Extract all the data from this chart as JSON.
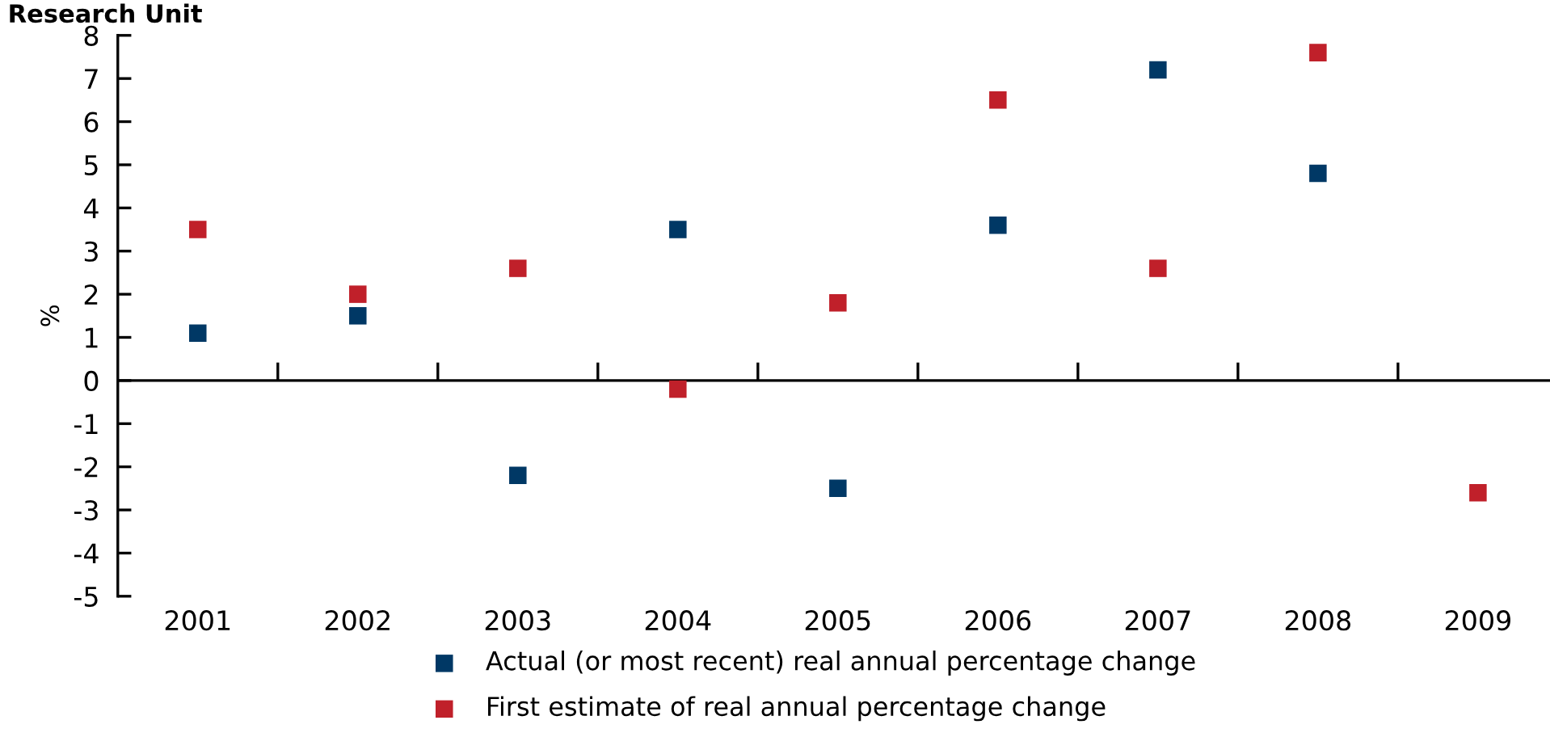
{
  "chart_data": {
    "type": "scatter",
    "title": "Research Unit",
    "ylabel": "%",
    "categories": [
      "2001",
      "2002",
      "2003",
      "2004",
      "2005",
      "2006",
      "2007",
      "2008",
      "2009"
    ],
    "series": [
      {
        "name": "Actual (or most recent) real annual percentage change",
        "color": "#003865",
        "values": [
          1.1,
          1.5,
          -2.2,
          3.5,
          -2.5,
          3.6,
          7.2,
          4.8,
          null
        ]
      },
      {
        "name": "First estimate of real annual percentage change",
        "color": "#c0202a",
        "values": [
          3.5,
          2.0,
          2.6,
          -0.2,
          1.8,
          6.5,
          2.6,
          7.6,
          -2.6
        ]
      }
    ],
    "ylim": [
      -5,
      8
    ],
    "yticks": [
      -5,
      -4,
      -3,
      -2,
      -1,
      0,
      1,
      2,
      3,
      4,
      5,
      6,
      7,
      8
    ],
    "ref_lines": [
      {
        "axis": "y",
        "value": 0,
        "color": "#000000"
      }
    ],
    "marker": "square",
    "grid": false,
    "legend": "bottom"
  }
}
